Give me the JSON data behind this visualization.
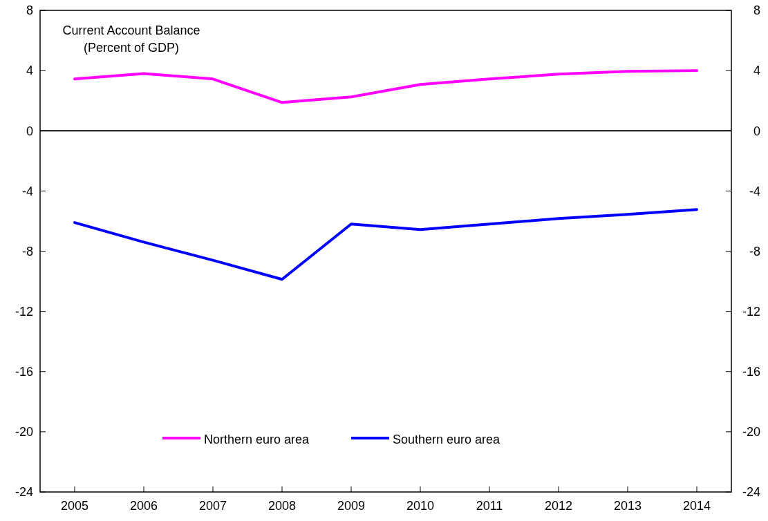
{
  "chart_data": {
    "type": "line",
    "title": "Current Account Balance",
    "subtitle": "(Percent of GDP)",
    "categories": [
      "2005",
      "2006",
      "2007",
      "2008",
      "2009",
      "2010",
      "2011",
      "2012",
      "2013",
      "2014"
    ],
    "series": [
      {
        "name": "Northern euro area",
        "color": "#ff00ff",
        "values": [
          3.44,
          3.8,
          3.44,
          1.88,
          2.25,
          3.08,
          3.44,
          3.76,
          3.95,
          4.0
        ]
      },
      {
        "name": "Southern euro area",
        "color": "#0000ff",
        "values": [
          -6.1,
          -7.4,
          -8.6,
          -9.87,
          -6.2,
          -6.57,
          -6.2,
          -5.83,
          -5.56,
          -5.23
        ]
      }
    ],
    "ylim": [
      -24,
      8
    ],
    "yticks": [
      -24,
      -20,
      -16,
      -12,
      -8,
      -4,
      0,
      4,
      8
    ],
    "y2lim": [
      -24,
      8
    ],
    "y2ticks": [
      -24,
      -20,
      -16,
      -12,
      -8,
      -4,
      0,
      4,
      8
    ],
    "ref_lines": [
      {
        "axis": "y",
        "value": 0,
        "color": "#000000"
      }
    ],
    "legend": "bottom",
    "grid": false,
    "marker": "none",
    "line_style": "solid"
  }
}
